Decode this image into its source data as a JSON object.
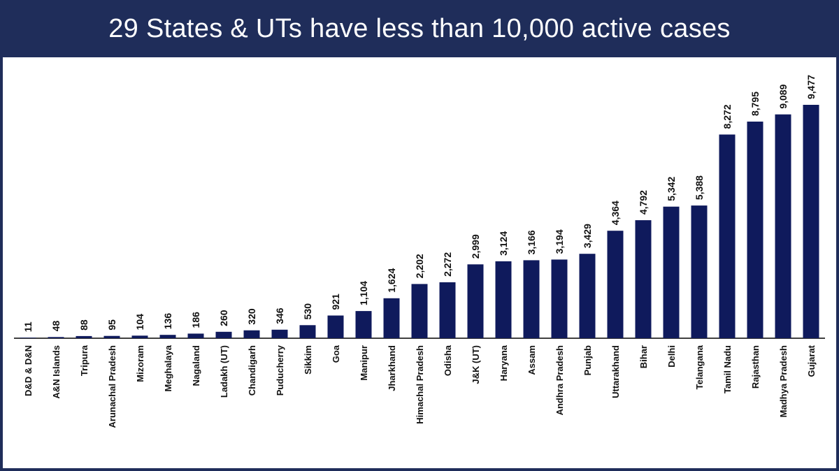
{
  "chart_data": {
    "type": "bar",
    "title": "29 States & UTs have less than 10,000 active cases",
    "xlabel": "",
    "ylabel": "",
    "ylim": [
      0,
      9800
    ],
    "grid": false,
    "bar_color": "#0f1a5c",
    "title_bg": "#1f2d5a",
    "categories": [
      "D&D & D&N",
      "A&N Islands",
      "Tripura",
      "Arunachal Pradesh",
      "Mizoram",
      "Meghalaya",
      "Nagaland",
      "Ladakh (UT)",
      "Chandigarh",
      "Puducherry",
      "Sikkim",
      "Goa",
      "Manipur",
      "Jharkhand",
      "Himachal Pradesh",
      "Odisha",
      "J&K (UT)",
      "Haryana",
      "Assam",
      "Andhra Pradesh",
      "Punjab",
      "Uttarakhand",
      "Bihar",
      "Delhi",
      "Telangana",
      "Tamil Nadu",
      "Rajasthan",
      "Madhya Pradesh",
      "Gujarat"
    ],
    "values": [
      11,
      48,
      88,
      95,
      104,
      136,
      186,
      260,
      320,
      346,
      530,
      921,
      1104,
      1624,
      2202,
      2272,
      2999,
      3124,
      3166,
      3194,
      3429,
      4364,
      4792,
      5342,
      5388,
      8272,
      8795,
      9089,
      9477
    ],
    "value_labels": [
      "11",
      "48",
      "88",
      "95",
      "104",
      "136",
      "186",
      "260",
      "320",
      "346",
      "530",
      "921",
      "1,104",
      "1,624",
      "2,202",
      "2,272",
      "2,999",
      "3,124",
      "3,166",
      "3,194",
      "3,429",
      "4,364",
      "4,792",
      "5,342",
      "5,388",
      "8,272",
      "8,795",
      "9,089",
      "9,477"
    ]
  }
}
